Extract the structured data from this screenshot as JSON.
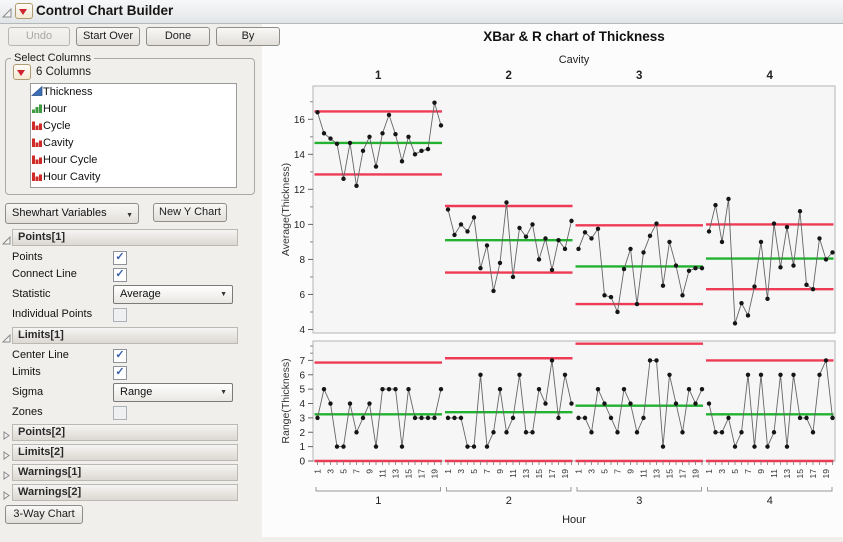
{
  "header": {
    "title": "Control Chart Builder"
  },
  "toolbar": {
    "buttons": [
      {
        "label": "Undo",
        "enabled": false
      },
      {
        "label": "Start Over",
        "enabled": true
      },
      {
        "label": "Done",
        "enabled": true
      },
      {
        "label": "By",
        "enabled": true
      }
    ]
  },
  "select_columns": {
    "legend": "Select Columns",
    "summary": "6 Columns",
    "items": [
      {
        "label": "Thickness",
        "icon": "continuous-icon"
      },
      {
        "label": "Hour",
        "icon": "ordinal-icon"
      },
      {
        "label": "Cycle",
        "icon": "nominal-icon"
      },
      {
        "label": "Cavity",
        "icon": "nominal-icon"
      },
      {
        "label": "Hour Cycle",
        "icon": "nominal-icon"
      },
      {
        "label": "Hour Cavity",
        "icon": "nominal-icon"
      }
    ]
  },
  "chart_type": {
    "label": "Shewhart Variables",
    "new_chart_button": "New Y Chart"
  },
  "panels": {
    "points1": {
      "title": "Points[1]",
      "rows": [
        {
          "label": "Points",
          "type": "checkbox",
          "checked": true
        },
        {
          "label": "Connect Line",
          "type": "checkbox",
          "checked": true
        },
        {
          "label": "Statistic",
          "type": "dropdown",
          "value": "Average"
        },
        {
          "label": "Individual Points",
          "type": "checkbox",
          "checked": false
        }
      ]
    },
    "limits1": {
      "title": "Limits[1]",
      "rows": [
        {
          "label": "Center Line",
          "type": "checkbox",
          "checked": true
        },
        {
          "label": "Limits",
          "type": "checkbox",
          "checked": true
        },
        {
          "label": "Sigma",
          "type": "dropdown",
          "value": "Range"
        },
        {
          "label": "Zones",
          "type": "checkbox",
          "checked": false
        }
      ]
    },
    "collapsed": [
      {
        "title": "Points[2]"
      },
      {
        "title": "Limits[2]"
      },
      {
        "title": "Warnings[1]"
      },
      {
        "title": "Warnings[2]"
      }
    ]
  },
  "footer": {
    "three_way_button": "3-Way Chart"
  },
  "chart_data": {
    "type": "line",
    "subtype": "control-chart-xbar-r",
    "title": "XBar & R chart of Thickness",
    "phase_axis": {
      "label": "Cavity",
      "phases": [
        "1",
        "2",
        "3",
        "4"
      ]
    },
    "xaxis": {
      "label": "Hour",
      "points_per_phase": 20,
      "tick_labels": [
        "1",
        "3",
        "5",
        "7",
        "9",
        "11",
        "13",
        "15",
        "17",
        "19"
      ]
    },
    "panels": [
      {
        "ylabel": "Average(Thickness)",
        "ylim": [
          3.8,
          17.9
        ],
        "yticks": [
          4,
          6,
          8,
          10,
          12,
          14,
          16
        ],
        "minor_yticks": [
          5,
          7,
          9,
          11,
          13,
          15,
          17
        ],
        "limits": [
          {
            "phase": "1",
            "ucl": 16.45,
            "center": 14.65,
            "lcl": 12.85
          },
          {
            "phase": "2",
            "ucl": 11.05,
            "center": 9.1,
            "lcl": 7.25
          },
          {
            "phase": "3",
            "ucl": 9.95,
            "center": 7.6,
            "lcl": 5.45
          },
          {
            "phase": "4",
            "ucl": 10.0,
            "center": 8.05,
            "lcl": 6.3
          }
        ],
        "series": [
          {
            "phase": "1",
            "values": [
              16.4,
              15.2,
              14.9,
              14.6,
              12.6,
              14.65,
              12.2,
              14.2,
              15.0,
              13.3,
              15.2,
              16.25,
              15.15,
              13.6,
              15.0,
              14.0,
              14.2,
              14.3,
              16.95,
              15.65
            ]
          },
          {
            "phase": "2",
            "values": [
              10.85,
              9.4,
              10.0,
              9.6,
              10.4,
              7.5,
              8.8,
              6.2,
              7.8,
              11.25,
              7.0,
              9.8,
              9.3,
              10.0,
              8.0,
              9.2,
              7.4,
              9.1,
              8.6,
              10.2
            ]
          },
          {
            "phase": "3",
            "values": [
              8.6,
              9.55,
              9.2,
              9.75,
              5.95,
              5.85,
              5.0,
              7.45,
              8.6,
              5.45,
              8.4,
              9.35,
              10.05,
              6.5,
              9.0,
              7.65,
              5.95,
              7.35,
              7.5,
              7.5
            ]
          },
          {
            "phase": "4",
            "values": [
              9.6,
              11.1,
              9.0,
              11.45,
              4.35,
              5.5,
              4.8,
              6.45,
              9.0,
              5.75,
              10.05,
              7.55,
              9.85,
              7.65,
              10.75,
              6.55,
              6.3,
              9.2,
              8.0,
              8.4
            ]
          }
        ]
      },
      {
        "ylabel": "Range(Thickness)",
        "ylim": [
          0,
          8.35
        ],
        "yticks": [
          0,
          1,
          2,
          3,
          4,
          5,
          6,
          7
        ],
        "minor_yticks": [
          7.5,
          8
        ],
        "limits": [
          {
            "phase": "1",
            "ucl": 6.85,
            "center": 3.25,
            "lcl": 0
          },
          {
            "phase": "2",
            "ucl": 7.15,
            "center": 3.4,
            "lcl": 0
          },
          {
            "phase": "3",
            "ucl": 8.16,
            "center": 3.85,
            "lcl": 0
          },
          {
            "phase": "4",
            "ucl": 7.0,
            "center": 3.25,
            "lcl": 0
          }
        ],
        "series": [
          {
            "phase": "1",
            "values": [
              3,
              5,
              4,
              1,
              1,
              4,
              2,
              3,
              4,
              1,
              5,
              5,
              5,
              1,
              5,
              3,
              3,
              3,
              3,
              5
            ]
          },
          {
            "phase": "2",
            "values": [
              3,
              3,
              3,
              1,
              1,
              6,
              1,
              2,
              5,
              2,
              3,
              6,
              2,
              2,
              5,
              4,
              7,
              3,
              6,
              4
            ]
          },
          {
            "phase": "3",
            "values": [
              3,
              3,
              2,
              5,
              4,
              3,
              2,
              5,
              4,
              2,
              3,
              7,
              7,
              1,
              6,
              4,
              2,
              5,
              4,
              5
            ]
          },
          {
            "phase": "4",
            "values": [
              4,
              2,
              2,
              3,
              1,
              2,
              6,
              1,
              6,
              1,
              2,
              6,
              1,
              6,
              3,
              3,
              2,
              6,
              7,
              3
            ]
          }
        ]
      }
    ],
    "colors": {
      "limit_line": "#ee3a55",
      "center_line": "#22b230",
      "point": "#151515",
      "connect_line": "#666666",
      "frame": "#b5b5b5",
      "plot_bg": "#f6f6f6"
    }
  }
}
